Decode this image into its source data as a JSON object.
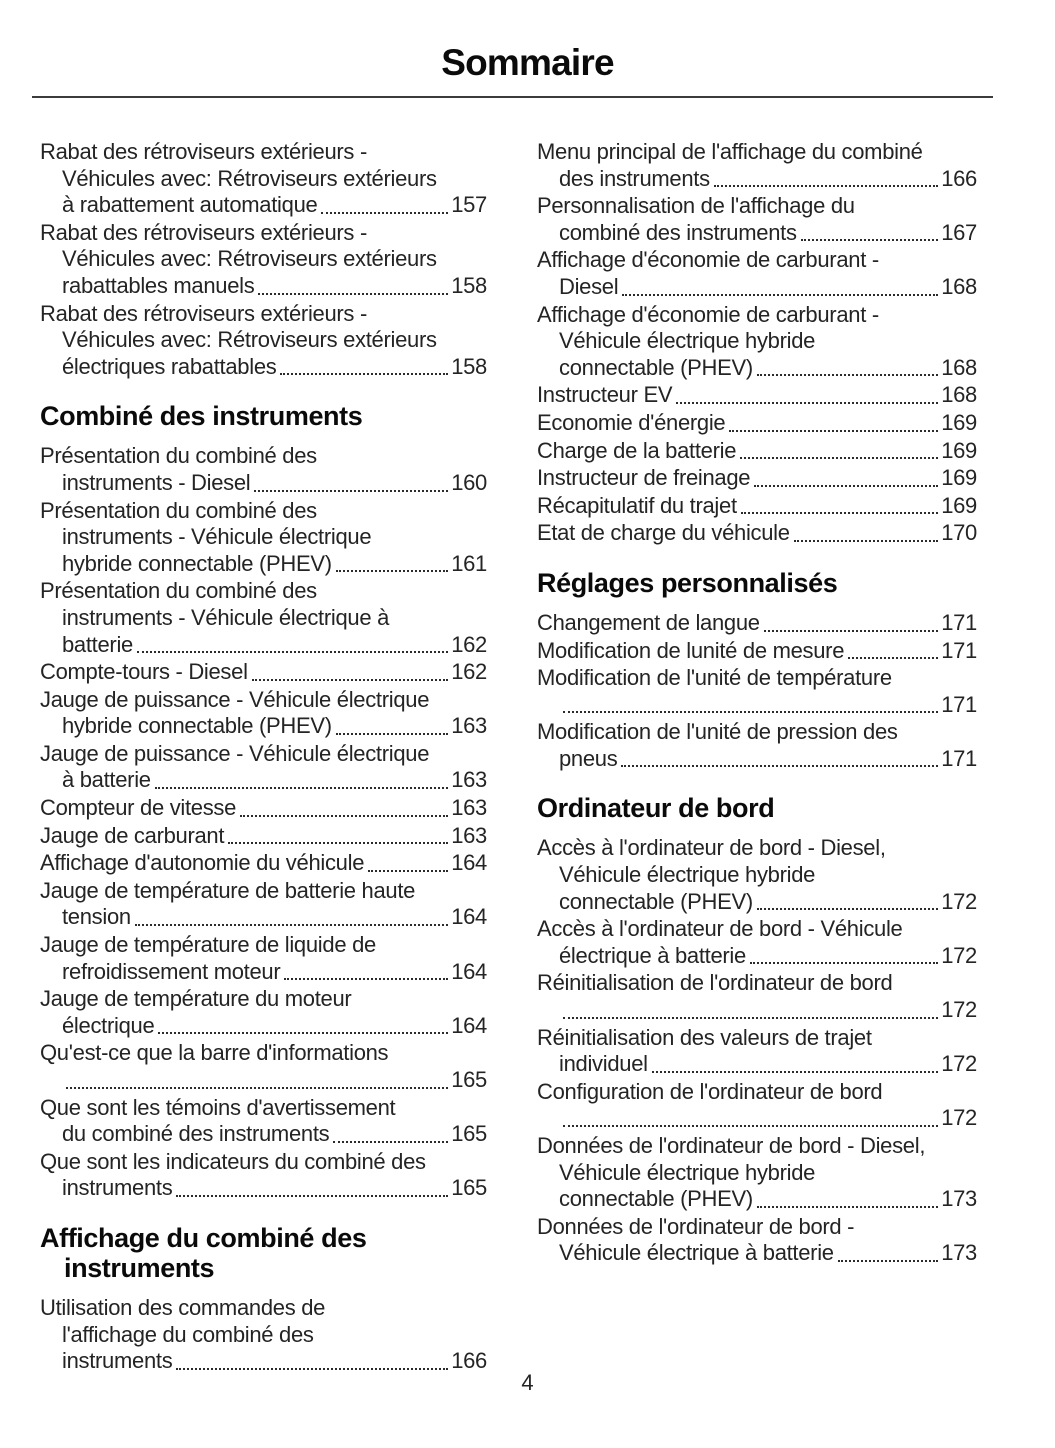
{
  "header": {
    "title": "Sommaire"
  },
  "footer": {
    "page_number": "4"
  },
  "colors": {
    "text": "#242424",
    "heading": "#0b0b0b",
    "rule": "#3b3b3b",
    "background": "#ffffff"
  },
  "columns": [
    {
      "name": "left",
      "blocks": [
        {
          "type": "entries",
          "items": [
            {
              "lines": [
                "Rabat des rétroviseurs extérieurs -",
                "Véhicules avec: Rétroviseurs extérieurs"
              ],
              "last": "à rabattement automatique",
              "page": "157"
            },
            {
              "lines": [
                "Rabat des rétroviseurs extérieurs -",
                "Véhicules avec: Rétroviseurs extérieurs"
              ],
              "last": "rabattables manuels",
              "page": "158"
            },
            {
              "lines": [
                "Rabat des rétroviseurs extérieurs -",
                "Véhicules avec: Rétroviseurs extérieurs"
              ],
              "last": "électriques rabattables",
              "page": "158"
            }
          ]
        },
        {
          "type": "heading",
          "text": "Combiné des instruments"
        },
        {
          "type": "entries",
          "items": [
            {
              "lines": [
                "Présentation du combiné des"
              ],
              "last": "instruments - Diesel",
              "page": "160"
            },
            {
              "lines": [
                "Présentation du combiné des",
                "instruments - Véhicule électrique"
              ],
              "last": "hybride connectable (PHEV)",
              "page": "161"
            },
            {
              "lines": [
                "Présentation du combiné des",
                "instruments - Véhicule électrique à"
              ],
              "last": "batterie",
              "page": "162"
            },
            {
              "lines": [],
              "last": "Compte-tours - Diesel",
              "page": "162"
            },
            {
              "lines": [
                "Jauge de puissance - Véhicule électrique"
              ],
              "last": "hybride connectable (PHEV)",
              "page": "163"
            },
            {
              "lines": [
                "Jauge de puissance - Véhicule électrique"
              ],
              "last": "à batterie",
              "page": "163"
            },
            {
              "lines": [],
              "last": "Compteur de vitesse",
              "page": "163"
            },
            {
              "lines": [],
              "last": "Jauge de carburant",
              "page": "163"
            },
            {
              "lines": [],
              "last": "Affichage d'autonomie du véhicule",
              "page": "164"
            },
            {
              "lines": [
                "Jauge de température de batterie haute"
              ],
              "last": "tension",
              "page": "164"
            },
            {
              "lines": [
                "Jauge de température de liquide de"
              ],
              "last": "refroidissement moteur",
              "page": "164"
            },
            {
              "lines": [
                "Jauge de température du moteur"
              ],
              "last": "électrique",
              "page": "164"
            },
            {
              "lines": [
                "Qu'est-ce que la barre d'informations"
              ],
              "last": "",
              "page": "165"
            },
            {
              "lines": [
                "Que sont les témoins d'avertissement"
              ],
              "last": "du combiné des instruments",
              "page": "165"
            },
            {
              "lines": [
                "Que sont les indicateurs du combiné des"
              ],
              "last": "instruments",
              "page": "165"
            }
          ]
        },
        {
          "type": "heading",
          "text": "Affichage du combiné des instruments"
        },
        {
          "type": "entries",
          "items": [
            {
              "lines": [
                "Utilisation des commandes de",
                "l'affichage du combiné des"
              ],
              "last": "instruments",
              "page": "166"
            }
          ]
        }
      ]
    },
    {
      "name": "right",
      "blocks": [
        {
          "type": "entries",
          "items": [
            {
              "lines": [
                "Menu principal de l'affichage du combiné"
              ],
              "last": "des instruments",
              "page": "166"
            },
            {
              "lines": [
                "Personnalisation de l'affichage du"
              ],
              "last": "combiné des instruments",
              "page": "167"
            },
            {
              "lines": [
                "Affichage d'économie de carburant -"
              ],
              "last": "Diesel",
              "page": "168"
            },
            {
              "lines": [
                "Affichage d'économie de carburant -",
                "Véhicule électrique hybride"
              ],
              "last": "connectable (PHEV)",
              "page": "168"
            },
            {
              "lines": [],
              "last": "Instructeur EV",
              "page": "168"
            },
            {
              "lines": [],
              "last": "Economie d'énergie",
              "page": "169"
            },
            {
              "lines": [],
              "last": "Charge de la batterie",
              "page": "169"
            },
            {
              "lines": [],
              "last": "Instructeur de freinage",
              "page": "169"
            },
            {
              "lines": [],
              "last": "Récapitulatif du trajet",
              "page": "169"
            },
            {
              "lines": [],
              "last": "Etat de charge du véhicule",
              "page": "170"
            }
          ]
        },
        {
          "type": "heading",
          "text": "Réglages personnalisés"
        },
        {
          "type": "entries",
          "items": [
            {
              "lines": [],
              "last": "Changement de langue",
              "page": "171"
            },
            {
              "lines": [],
              "last": "Modification de lunité de mesure",
              "page": "171"
            },
            {
              "lines": [
                "Modification de l'unité de température"
              ],
              "last": "",
              "page": "171"
            },
            {
              "lines": [
                "Modification de l'unité de pression des"
              ],
              "last": "pneus",
              "page": "171"
            }
          ]
        },
        {
          "type": "heading",
          "text": "Ordinateur de bord"
        },
        {
          "type": "entries",
          "items": [
            {
              "lines": [
                "Accès à l'ordinateur de bord - Diesel,",
                "Véhicule électrique hybride"
              ],
              "last": "connectable (PHEV)",
              "page": "172"
            },
            {
              "lines": [
                "Accès à l'ordinateur de bord - Véhicule"
              ],
              "last": "électrique à batterie",
              "page": "172"
            },
            {
              "lines": [
                "Réinitialisation de l'ordinateur de bord"
              ],
              "last": "",
              "page": "172"
            },
            {
              "lines": [
                "Réinitialisation des valeurs de trajet"
              ],
              "last": "individuel",
              "page": "172"
            },
            {
              "lines": [
                "Configuration de l'ordinateur de bord"
              ],
              "last": "",
              "page": "172"
            },
            {
              "lines": [
                "Données de l'ordinateur de bord - Diesel,",
                "Véhicule électrique hybride"
              ],
              "last": "connectable (PHEV)",
              "page": "173"
            },
            {
              "lines": [
                "Données de l'ordinateur de bord -"
              ],
              "last": "Véhicule électrique à batterie",
              "page": "173"
            }
          ]
        }
      ]
    }
  ]
}
